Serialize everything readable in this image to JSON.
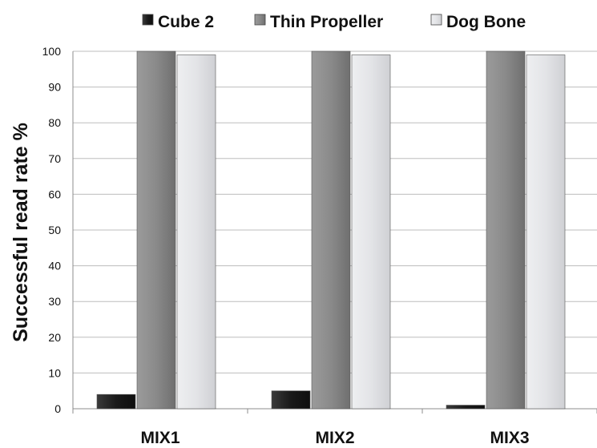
{
  "chart_data": {
    "type": "bar",
    "categories": [
      "MIX1",
      "MIX2",
      "MIX3"
    ],
    "series": [
      {
        "name": "Cube 2",
        "values": [
          4,
          5,
          1
        ],
        "color": "#1e1e1e"
      },
      {
        "name": "Thin Propeller",
        "values": [
          100,
          100,
          100
        ],
        "color": "#8a8a8a"
      },
      {
        "name": "Dog Bone",
        "values": [
          99,
          99,
          99
        ],
        "color": "#e2e3e6"
      }
    ],
    "title": "",
    "xlabel": "",
    "ylabel": "Successful read rate %",
    "ylim": [
      0,
      100
    ],
    "yticks": [
      0,
      10,
      20,
      30,
      40,
      50,
      60,
      70,
      80,
      90,
      100
    ],
    "grid": true,
    "legend_position": "top"
  }
}
